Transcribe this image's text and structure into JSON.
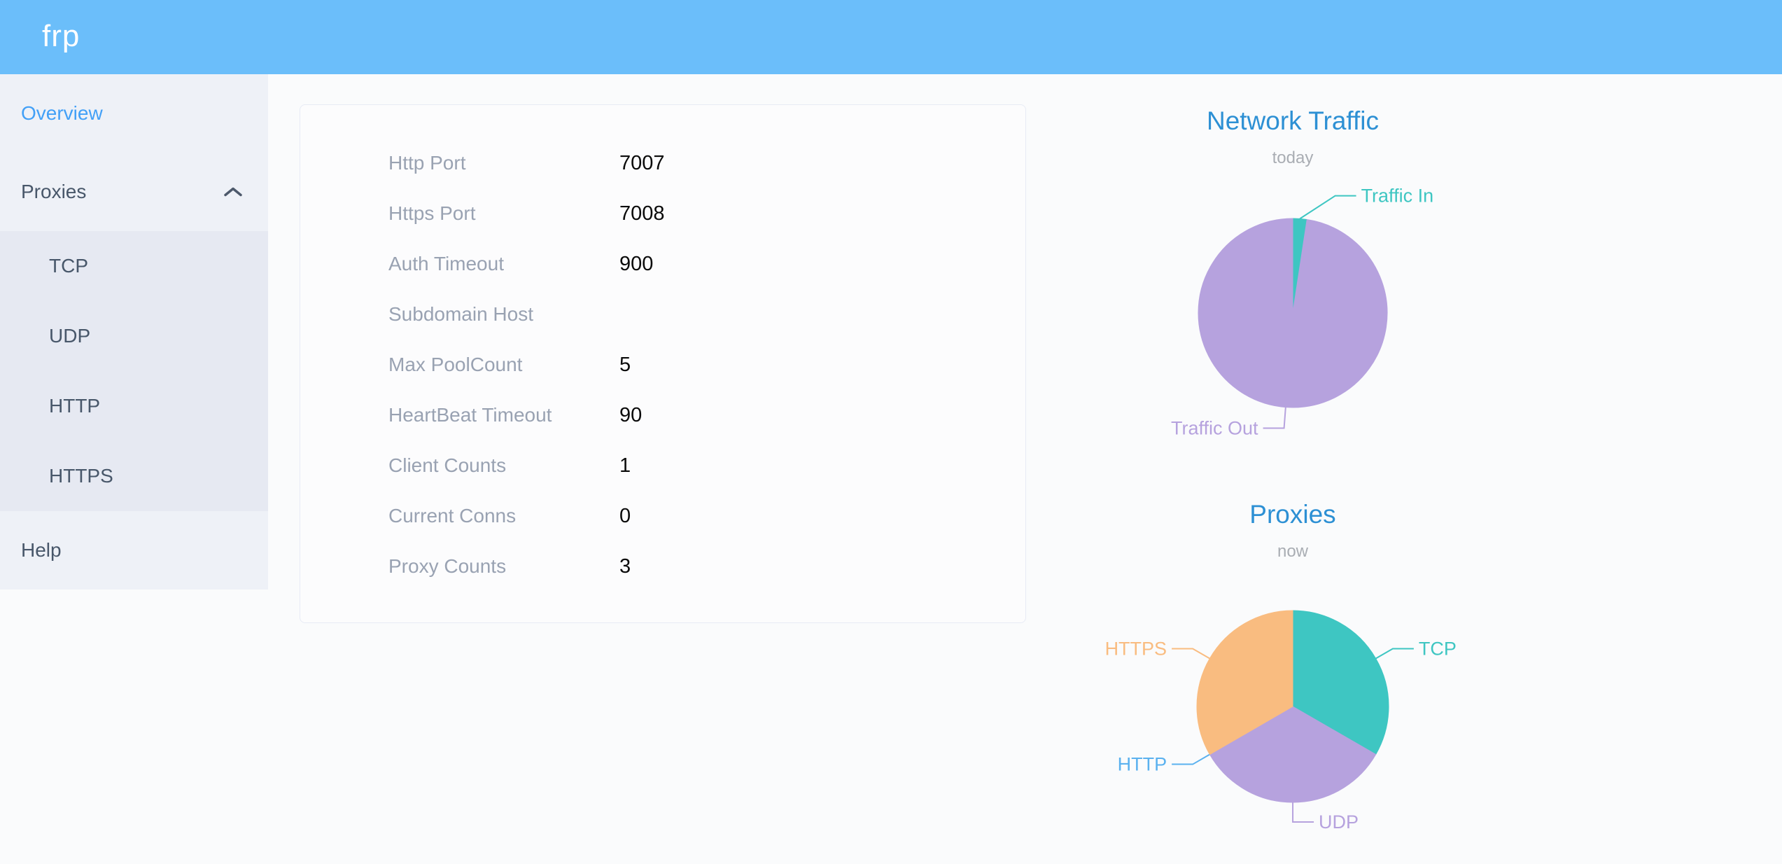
{
  "app": {
    "logo": "frp",
    "header_bg": "#6bbefa"
  },
  "sidebar": {
    "active_color": "#42a0f7",
    "items": [
      {
        "label": "Overview",
        "active": true
      },
      {
        "label": "Proxies",
        "expanded": true,
        "children": [
          "TCP",
          "UDP",
          "HTTP",
          "HTTPS"
        ]
      },
      {
        "label": "Help"
      }
    ]
  },
  "overview": {
    "fields": [
      {
        "label": "Http Port",
        "value": "7007"
      },
      {
        "label": "Https Port",
        "value": "7008"
      },
      {
        "label": "Auth Timeout",
        "value": "900"
      },
      {
        "label": "Subdomain Host",
        "value": ""
      },
      {
        "label": "Max PoolCount",
        "value": "5"
      },
      {
        "label": "HeartBeat Timeout",
        "value": "90"
      },
      {
        "label": "Client Counts",
        "value": "1"
      },
      {
        "label": "Current Conns",
        "value": "0"
      },
      {
        "label": "Proxy Counts",
        "value": "3"
      }
    ]
  },
  "chart_data": [
    {
      "type": "pie",
      "title": "Network Traffic",
      "subtitle": "today",
      "title_color": "#2d90d4",
      "legend_position": "callout-labels",
      "slices": [
        {
          "label": "Traffic In",
          "color": "#3ec6c2",
          "percent": 2.4
        },
        {
          "label": "Traffic Out",
          "color": "#b6a2de",
          "percent": 97.6
        }
      ]
    },
    {
      "type": "pie",
      "title": "Proxies",
      "subtitle": "now",
      "title_color": "#2d90d4",
      "legend_position": "callout-labels",
      "slices": [
        {
          "label": "TCP",
          "color": "#3ec6c2",
          "value": 1,
          "percent": 33.33
        },
        {
          "label": "UDP",
          "color": "#b6a2de",
          "value": 1,
          "percent": 33.33
        },
        {
          "label": "HTTP",
          "color": "#5ab1ef",
          "value": 0,
          "percent": 0
        },
        {
          "label": "HTTPS",
          "color": "#f9bc80",
          "value": 1,
          "percent": 33.34
        }
      ]
    }
  ]
}
